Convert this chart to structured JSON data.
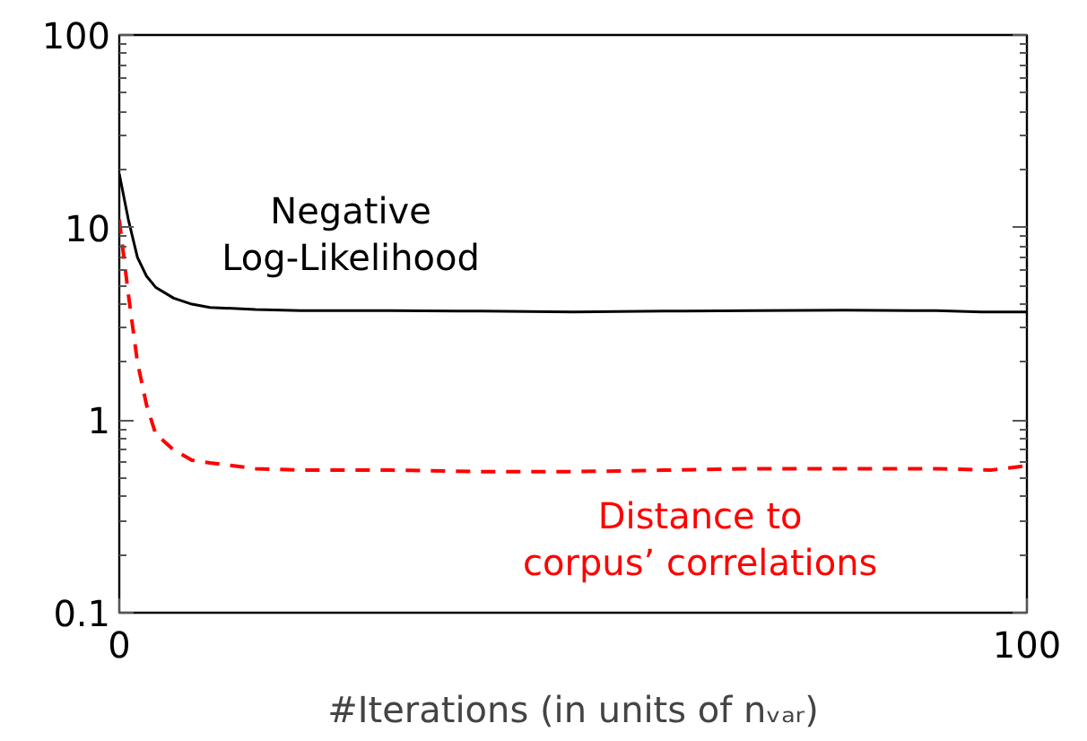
{
  "chart_data": {
    "type": "line",
    "xlabel": "#Iterations (in units of nᵥₐᵣ)",
    "log": "y",
    "grid": false,
    "xlim": [
      0,
      100
    ],
    "xticks": [
      0,
      100
    ],
    "ylim": [
      0.1,
      100
    ],
    "yticks": [
      0.1,
      1,
      10,
      100
    ],
    "series": [
      {
        "color": "#000000",
        "line_style": "solid",
        "x": [
          0,
          1,
          2,
          3,
          4,
          6,
          8,
          10,
          15,
          20,
          30,
          40,
          50,
          60,
          70,
          80,
          90,
          95,
          100
        ],
        "values": [
          19,
          11,
          7,
          5.6,
          4.9,
          4.3,
          4.0,
          3.85,
          3.75,
          3.7,
          3.7,
          3.68,
          3.65,
          3.68,
          3.7,
          3.72,
          3.7,
          3.65,
          3.65
        ]
      },
      {
        "color": "#ff0000",
        "line_style": "dashed",
        "x": [
          0,
          1,
          2,
          3,
          4,
          6,
          8,
          10,
          15,
          20,
          30,
          40,
          50,
          60,
          70,
          80,
          90,
          96,
          100
        ],
        "values": [
          11,
          4.5,
          2.0,
          1.2,
          0.85,
          0.7,
          0.62,
          0.6,
          0.56,
          0.55,
          0.55,
          0.54,
          0.54,
          0.55,
          0.56,
          0.56,
          0.56,
          0.55,
          0.58
        ]
      }
    ],
    "annotations": [
      "Negative\nLog-Likelihood",
      "Distance to\ncorpus’ correlations"
    ]
  }
}
